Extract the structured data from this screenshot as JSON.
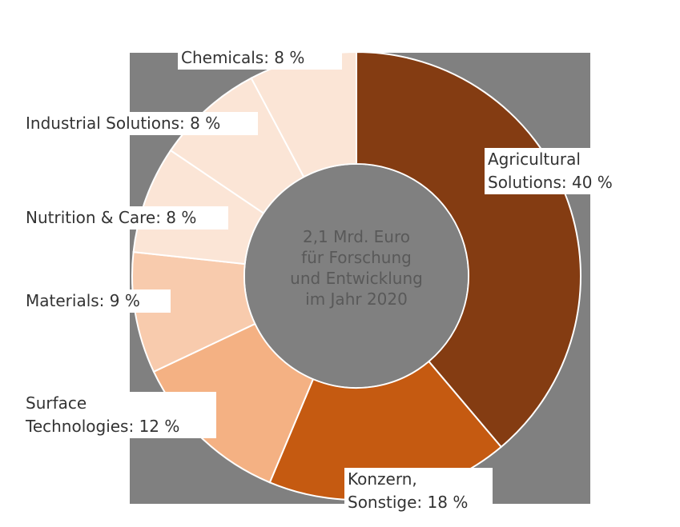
{
  "chart_data": {
    "type": "donut",
    "center_text": "2,1 Mrd. Euro\nfür Forschung\nund Entwicklung\nim Jahr 2020",
    "categories": [
      "Agricultural\nSolutions: 40 %",
      "Konzern,\nSonstige: 18 %",
      "Surface\nTechnologies: 12 %",
      "Materials: 9 %",
      "Nutrition & Care: 8 %",
      "Industrial Solutions: 8 %",
      "Chemicals: 8 %"
    ],
    "values": [
      40,
      18,
      12,
      9,
      8,
      8,
      8
    ],
    "colors": [
      "#843c12",
      "#c55a11",
      "#f4b183",
      "#f8cbad",
      "#fbe5d6",
      "#fbe5d6",
      "#fbe5d6"
    ]
  }
}
